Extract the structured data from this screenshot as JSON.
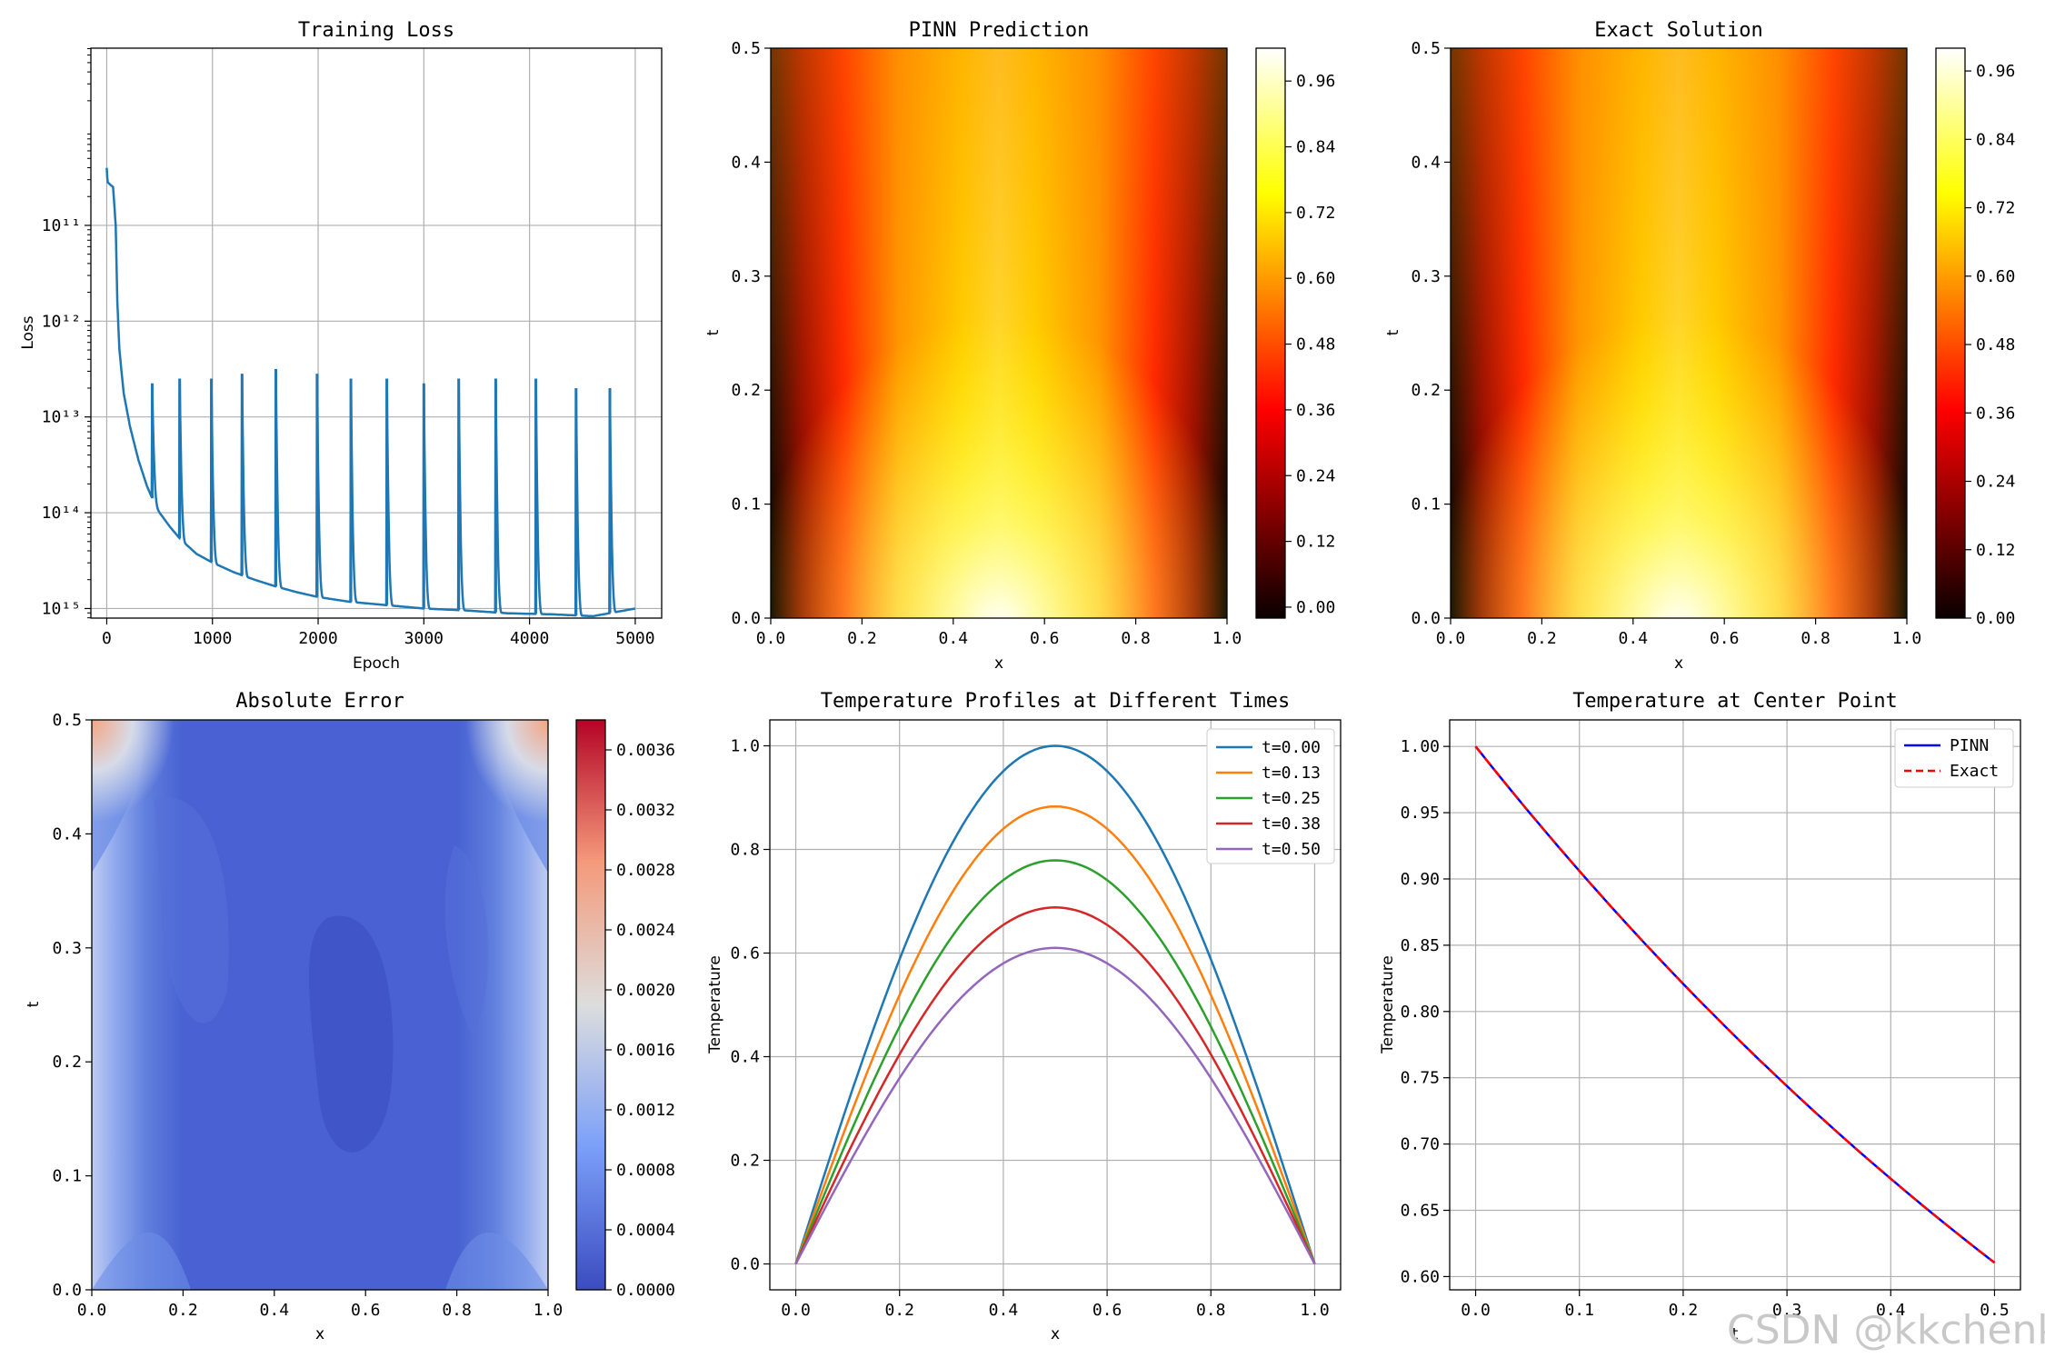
{
  "watermark": "CSDN @kkchenkx",
  "chart_data": [
    {
      "id": "loss",
      "type": "line",
      "title": "Training Loss",
      "xlabel": "Epoch",
      "ylabel": "Loss",
      "yscale": "log",
      "xlim": [
        -150,
        5250
      ],
      "ylim_exp": [
        -5.1,
        0.85
      ],
      "grid": true,
      "x_ticks": [
        "0",
        "1000",
        "2000",
        "3000",
        "4000",
        "5000"
      ],
      "x_tick_values": [
        0,
        1000,
        2000,
        3000,
        4000,
        5000
      ],
      "y_ticks": [
        "10¹¹",
        "10¹²",
        "10¹³",
        "10¹⁴",
        "10¹⁵"
      ],
      "y_tick_exps": [
        -1,
        -2,
        -3,
        -4,
        -5
      ],
      "series": [
        {
          "name": "loss",
          "color": "#1f77b4",
          "points": [
            [
              0,
              -0.4
            ],
            [
              8,
              -0.55
            ],
            [
              60,
              -0.6
            ],
            [
              85,
              -1.0
            ],
            [
              100,
              -1.8
            ],
            [
              120,
              -2.3
            ],
            [
              160,
              -2.75
            ],
            [
              220,
              -3.1
            ],
            [
              300,
              -3.45
            ],
            [
              380,
              -3.72
            ],
            [
              430,
              -3.85
            ],
            [
              500,
              -4.0
            ],
            [
              600,
              -4.15
            ],
            [
              700,
              -4.28
            ],
            [
              850,
              -4.43
            ],
            [
              1000,
              -4.52
            ],
            [
              1200,
              -4.62
            ],
            [
              1400,
              -4.7
            ],
            [
              1600,
              -4.77
            ],
            [
              1800,
              -4.83
            ],
            [
              2000,
              -4.88
            ],
            [
              2300,
              -4.93
            ],
            [
              2600,
              -4.96
            ],
            [
              3000,
              -5.0
            ],
            [
              3400,
              -5.02
            ],
            [
              3800,
              -5.05
            ],
            [
              4200,
              -5.06
            ],
            [
              4600,
              -5.08
            ],
            [
              5000,
              -5.0
            ]
          ],
          "spikes": [
            [
              430,
              -2.65
            ],
            [
              690,
              -2.6
            ],
            [
              990,
              -2.6
            ],
            [
              1280,
              -2.55
            ],
            [
              1600,
              -2.5
            ],
            [
              1990,
              -2.55
            ],
            [
              2310,
              -2.6
            ],
            [
              2650,
              -2.6
            ],
            [
              3000,
              -2.65
            ],
            [
              3330,
              -2.6
            ],
            [
              3680,
              -2.6
            ],
            [
              4060,
              -2.6
            ],
            [
              4440,
              -2.7
            ],
            [
              4760,
              -2.7
            ]
          ]
        }
      ]
    },
    {
      "id": "pinn",
      "type": "heatmap",
      "title": "PINN Prediction",
      "xlabel": "x",
      "ylabel": "t",
      "xlim": [
        0,
        1
      ],
      "ylim": [
        0,
        0.5
      ],
      "colormap": "hot",
      "x_ticks": [
        "0.0",
        "0.2",
        "0.4",
        "0.6",
        "0.8",
        "1.0"
      ],
      "y_ticks": [
        "0.0",
        "0.1",
        "0.2",
        "0.3",
        "0.4",
        "0.5"
      ],
      "colorbar_ticks": [
        "0.00",
        "0.12",
        "0.24",
        "0.36",
        "0.48",
        "0.60",
        "0.72",
        "0.84",
        "0.96"
      ],
      "colorbar_range": [
        -0.02,
        1.02
      ],
      "function": "exp(-pi^2 * 0.1 * t) * sin(pi * x)"
    },
    {
      "id": "exact",
      "type": "heatmap",
      "title": "Exact Solution",
      "xlabel": "x",
      "ylabel": "t",
      "xlim": [
        0,
        1
      ],
      "ylim": [
        0,
        0.5
      ],
      "colormap": "hot",
      "x_ticks": [
        "0.0",
        "0.2",
        "0.4",
        "0.6",
        "0.8",
        "1.0"
      ],
      "y_ticks": [
        "0.0",
        "0.1",
        "0.2",
        "0.3",
        "0.4",
        "0.5"
      ],
      "colorbar_ticks": [
        "0.00",
        "0.12",
        "0.24",
        "0.36",
        "0.48",
        "0.60",
        "0.72",
        "0.84",
        "0.96"
      ],
      "colorbar_range": [
        0.0,
        1.0
      ],
      "function": "exp(-pi^2 * 0.1 * t) * sin(pi * x)"
    },
    {
      "id": "error",
      "type": "heatmap",
      "title": "Absolute Error",
      "xlabel": "x",
      "ylabel": "t",
      "xlim": [
        0,
        1
      ],
      "ylim": [
        0,
        0.5
      ],
      "colormap": "coolwarm",
      "x_ticks": [
        "0.0",
        "0.2",
        "0.4",
        "0.6",
        "0.8",
        "1.0"
      ],
      "y_ticks": [
        "0.0",
        "0.1",
        "0.2",
        "0.3",
        "0.4",
        "0.5"
      ],
      "colorbar_ticks": [
        "0.0000",
        "0.0004",
        "0.0008",
        "0.0012",
        "0.0016",
        "0.0020",
        "0.0024",
        "0.0028",
        "0.0032",
        "0.0036"
      ],
      "colorbar_range": [
        0.0,
        0.0038
      ]
    },
    {
      "id": "profiles",
      "type": "line",
      "title": "Temperature Profiles at Different Times",
      "xlabel": "x",
      "ylabel": "Temperature",
      "xlim": [
        -0.05,
        1.05
      ],
      "ylim": [
        -0.05,
        1.05
      ],
      "grid": true,
      "legend": "top-right",
      "x_ticks": [
        "0.0",
        "0.2",
        "0.4",
        "0.6",
        "0.8",
        "1.0"
      ],
      "y_ticks": [
        "0.0",
        "0.2",
        "0.4",
        "0.6",
        "0.8",
        "1.0"
      ],
      "series": [
        {
          "name": "t=0.00",
          "peak": 1.0,
          "color": "#1f77b4"
        },
        {
          "name": "t=0.13",
          "peak": 0.883,
          "color": "#ff7f0e"
        },
        {
          "name": "t=0.25",
          "peak": 0.779,
          "color": "#2ca02c"
        },
        {
          "name": "t=0.38",
          "peak": 0.688,
          "color": "#d62728"
        },
        {
          "name": "t=0.50",
          "peak": 0.61,
          "color": "#9467bd"
        }
      ]
    },
    {
      "id": "center",
      "type": "line",
      "title": "Temperature at Center Point",
      "xlabel": "t",
      "ylabel": "Temperature",
      "xlim": [
        -0.025,
        0.525
      ],
      "ylim": [
        0.59,
        1.02
      ],
      "grid": true,
      "legend": "top-right",
      "x_ticks": [
        "0.0",
        "0.1",
        "0.2",
        "0.3",
        "0.4",
        "0.5"
      ],
      "y_ticks": [
        "0.60",
        "0.65",
        "0.70",
        "0.75",
        "0.80",
        "0.85",
        "0.90",
        "0.95",
        "1.00"
      ],
      "series": [
        {
          "name": "PINN",
          "color": "#0000ff",
          "style": "solid",
          "decay": 0.987
        },
        {
          "name": "Exact",
          "color": "#ff0000",
          "style": "dashed",
          "decay": 0.987
        }
      ]
    }
  ]
}
